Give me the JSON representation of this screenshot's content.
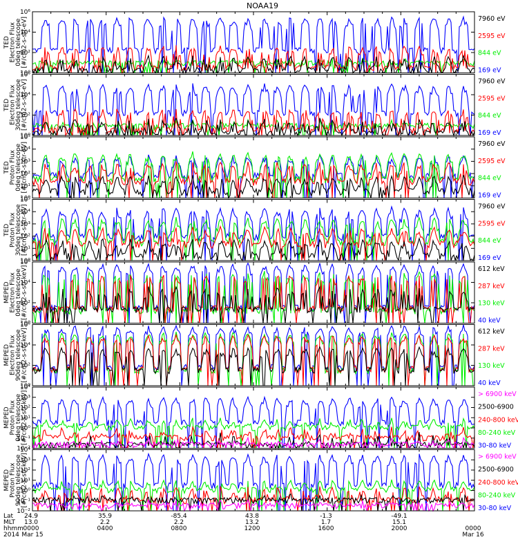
{
  "title": "NOAA19",
  "colors": {
    "blue": "#0000ff",
    "red": "#ff0000",
    "green": "#00ee00",
    "black": "#000000",
    "magenta": "#ff00ff"
  },
  "footer": {
    "row_labels": [
      "Lat",
      "MLT",
      "hhmm",
      "2014"
    ],
    "lat": [
      "24.9",
      "35.9",
      "-85.4",
      "43.8",
      "-1.3",
      "-49.1"
    ],
    "mlt": [
      "13.0",
      "2.2",
      "2.2",
      "13.2",
      "1.7",
      "15.1"
    ],
    "hhmm": [
      "0000",
      "0400",
      "0800",
      "1200",
      "1600",
      "2000",
      "0000"
    ],
    "date_start": "Mar 15",
    "date_end": "Mar 16"
  },
  "chart_data": [
    {
      "type": "line",
      "panel_id": 0,
      "ylabel": [
        "TED",
        "Electron Flux",
        "0deg telescope",
        "[#/cm2-s-str-eV]"
      ],
      "yscale": "log",
      "ylim": [
        1,
        1000000
      ],
      "yticks": [
        "10⁰",
        "10²",
        "10⁴",
        "10⁶"
      ],
      "x_range_hours": [
        0,
        24
      ],
      "series": [
        {
          "name": "7960 eV",
          "color": "black",
          "baseline": 1.5,
          "peak": 40,
          "peak_prob": 0.25
        },
        {
          "name": "2595 eV",
          "color": "red",
          "baseline": 3,
          "peak": 400,
          "peak_prob": 0.25
        },
        {
          "name": "844 eV",
          "color": "green",
          "baseline": 8,
          "peak": 30,
          "peak_prob": 0.15
        },
        {
          "name": "169 eV",
          "color": "blue",
          "baseline": 150,
          "peak": 300000,
          "peak_prob": 0.3
        }
      ]
    },
    {
      "type": "line",
      "panel_id": 1,
      "ylabel": [
        "TED",
        "Electron Flux",
        "30deg telescope",
        "[#/cm2-s-str-eV]"
      ],
      "yscale": "log",
      "ylim": [
        1,
        1000000
      ],
      "yticks": [
        "10⁰",
        "10²",
        "10⁴",
        "10⁶"
      ],
      "x_range_hours": [
        0,
        24
      ],
      "series": [
        {
          "name": "7960 eV",
          "color": "black",
          "baseline": 1.5,
          "peak": 40,
          "peak_prob": 0.25
        },
        {
          "name": "2595 eV",
          "color": "red",
          "baseline": 3,
          "peak": 400,
          "peak_prob": 0.25
        },
        {
          "name": "844 eV",
          "color": "green",
          "baseline": 8,
          "peak": 30,
          "peak_prob": 0.15
        },
        {
          "name": "169 eV",
          "color": "blue",
          "baseline": 150,
          "peak": 100000,
          "peak_prob": 0.3
        }
      ]
    },
    {
      "type": "line",
      "panel_id": 2,
      "ylabel": [
        "TED",
        "Proton Flux",
        "0deg telescope",
        "[#/cm2-s-str-eV]"
      ],
      "yscale": "log",
      "ylim": [
        1,
        100000
      ],
      "yticks": [
        "10⁰",
        "10¹",
        "10²",
        "10³",
        "10⁴",
        "10⁵"
      ],
      "x_range_hours": [
        0,
        24
      ],
      "series": [
        {
          "name": "7960 eV",
          "color": "black",
          "baseline": 3,
          "peak": 60,
          "peak_prob": 0.3
        },
        {
          "name": "2595 eV",
          "color": "red",
          "baseline": 20,
          "peak": 800,
          "peak_prob": 0.3
        },
        {
          "name": "844 eV",
          "color": "green",
          "baseline": 30,
          "peak": 5000,
          "peak_prob": 0.6
        },
        {
          "name": "169 eV",
          "color": "blue",
          "baseline": 60,
          "peak": 3000,
          "peak_prob": 0.5
        }
      ]
    },
    {
      "type": "line",
      "panel_id": 3,
      "ylabel": [
        "TED",
        "Proton Flux",
        "30deg telescope",
        "[#/cm2-s-str-eV]"
      ],
      "yscale": "log",
      "ylim": [
        1,
        100000
      ],
      "yticks": [
        "10⁰",
        "10¹",
        "10²",
        "10³",
        "10⁴",
        "10⁵"
      ],
      "x_range_hours": [
        0,
        24
      ],
      "series": [
        {
          "name": "7960 eV",
          "color": "black",
          "baseline": 2,
          "peak": 60,
          "peak_prob": 0.3
        },
        {
          "name": "2595 eV",
          "color": "red",
          "baseline": 20,
          "peak": 500,
          "peak_prob": 0.3
        },
        {
          "name": "844 eV",
          "color": "green",
          "baseline": 30,
          "peak": 3000,
          "peak_prob": 0.6
        },
        {
          "name": "169 eV",
          "color": "blue",
          "baseline": 80,
          "peak": 20000,
          "peak_prob": 0.5
        }
      ]
    },
    {
      "type": "line",
      "panel_id": 4,
      "ylabel": [
        "MEPED",
        "Electron Flux",
        "0deg telescope",
        "[#/cm2-s-str-keV]"
      ],
      "yscale": "log",
      "ylim": [
        1,
        1000000
      ],
      "yticks": [
        "10⁰",
        "10²",
        "10⁴",
        "10⁶"
      ],
      "x_range_hours": [
        0,
        24
      ],
      "series": [
        {
          "name": "612 keV",
          "color": "black",
          "baseline": 20,
          "peak": 3000,
          "peak_prob": 0.2
        },
        {
          "name": "287 keV",
          "color": "red",
          "baseline": 25,
          "peak": 50000,
          "peak_prob": 0.2
        },
        {
          "name": "130 keV",
          "color": "green",
          "baseline": 15,
          "peak": 100000,
          "peak_prob": 0.2
        },
        {
          "name": "40 keV",
          "color": "blue",
          "baseline": 30,
          "peak": 600000,
          "peak_prob": 0.45
        }
      ]
    },
    {
      "type": "line",
      "panel_id": 5,
      "ylabel": [
        "MEPED",
        "Electron Flux",
        "90deg telescope",
        "[#/cm2-s-str-keV]"
      ],
      "yscale": "log",
      "ylim": [
        1,
        1000000
      ],
      "yticks": [
        "10⁰",
        "10²",
        "10⁴",
        "10⁶"
      ],
      "x_range_hours": [
        0,
        24
      ],
      "series": [
        {
          "name": "612 keV",
          "color": "black",
          "baseline": 30,
          "peak": 5000,
          "peak_prob": 0.35
        },
        {
          "name": "287 keV",
          "color": "red",
          "baseline": 40,
          "peak": 80000,
          "peak_prob": 0.4
        },
        {
          "name": "130 keV",
          "color": "green",
          "baseline": 30,
          "peak": 150000,
          "peak_prob": 0.4
        },
        {
          "name": "40 keV",
          "color": "blue",
          "baseline": 60,
          "peak": 700000,
          "peak_prob": 0.6
        }
      ]
    },
    {
      "type": "line",
      "panel_id": 6,
      "ylabel": [
        "MEPED",
        "Proton Flux",
        "0deg telescope",
        "[#/cm2-s-str-keV]"
      ],
      "yscale": "log",
      "ylim": [
        0.01,
        10000
      ],
      "yticks": [
        "10⁻²",
        "10⁻¹",
        "10⁰",
        "10¹",
        "10²",
        "10³",
        "10⁴"
      ],
      "x_range_hours": [
        0,
        24
      ],
      "series": [
        {
          "name": "> 6900 keV",
          "color": "magenta",
          "baseline": 0.02,
          "peak": 0.1,
          "peak_prob": 0.15
        },
        {
          "name": "2500-6900",
          "color": "black",
          "baseline": 0.02,
          "peak": 0.3,
          "peak_prob": 0.1
        },
        {
          "name": "240-800 keV",
          "color": "red",
          "baseline": 0.1,
          "peak": 1,
          "peak_prob": 0.2
        },
        {
          "name": "80-240 keV",
          "color": "green",
          "baseline": 1,
          "peak": 8,
          "peak_prob": 0.3
        },
        {
          "name": "30-80 keV",
          "color": "blue",
          "baseline": 3,
          "peak": 1000,
          "peak_prob": 0.55
        }
      ]
    },
    {
      "type": "line",
      "panel_id": 7,
      "ylabel": [
        "MEPED",
        "Proton Flux",
        "90deg telescope",
        "[#/cm2-s-str-keV]"
      ],
      "yscale": "log",
      "ylim": [
        0.01,
        10000
      ],
      "yticks": [
        "10⁻²",
        "10⁻¹",
        "10⁰",
        "10¹",
        "10²",
        "10³",
        "10⁴"
      ],
      "x_range_hours": [
        0,
        24
      ],
      "series": [
        {
          "name": "> 6900 keV",
          "color": "magenta",
          "baseline": 0.03,
          "peak": 0.1,
          "peak_prob": 0.15
        },
        {
          "name": "2500-6900",
          "color": "black",
          "baseline": 0.1,
          "peak": 0.5,
          "peak_prob": 0.1
        },
        {
          "name": "240-800 keV",
          "color": "red",
          "baseline": 0.1,
          "peak": 2,
          "peak_prob": 0.25
        },
        {
          "name": "80-240 keV",
          "color": "green",
          "baseline": 1,
          "peak": 10,
          "peak_prob": 0.35
        },
        {
          "name": "30-80 keV",
          "color": "blue",
          "baseline": 3,
          "peak": 3000,
          "peak_prob": 0.6
        }
      ]
    }
  ]
}
